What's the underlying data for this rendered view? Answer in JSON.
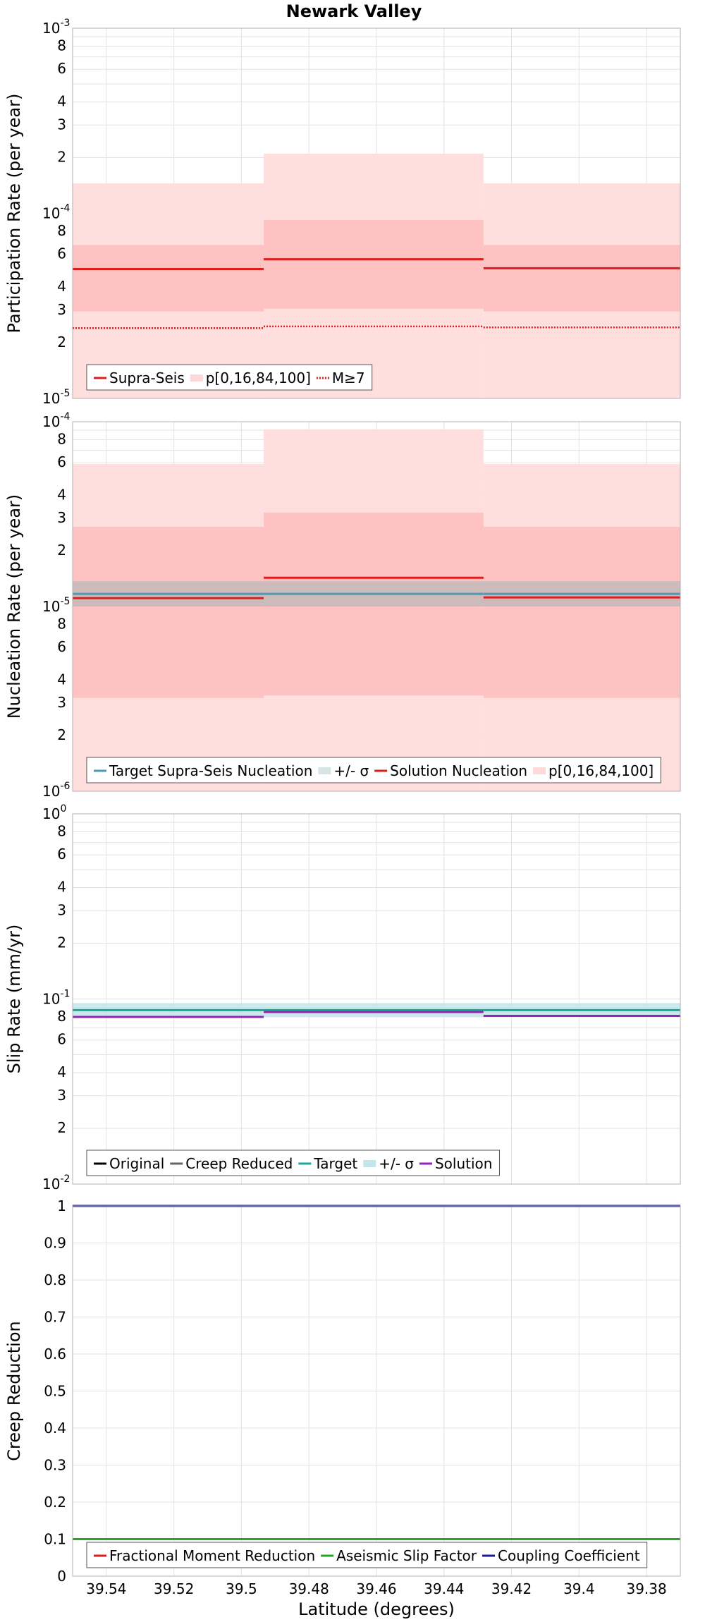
{
  "title": "Newark Valley",
  "x_axis": {
    "label": "Latitude (degrees)",
    "min": 39.55,
    "max": 39.37,
    "ticks": [
      39.54,
      39.52,
      39.5,
      39.48,
      39.46,
      39.44,
      39.42,
      39.4,
      39.38
    ],
    "tick_labels": [
      "39.54",
      "39.52",
      "39.5",
      "39.48",
      "39.46",
      "39.44",
      "39.42",
      "39.4",
      "39.38"
    ]
  },
  "chart_data": [
    {
      "type": "line",
      "name": "participation",
      "ylabel": "Participation Rate (per year)",
      "yscale": "log",
      "ylim": [
        1e-05,
        0.001
      ],
      "y_major_labels": [
        {
          "base": "10",
          "exp": "-5"
        },
        {
          "base": "10",
          "exp": "-4"
        },
        {
          "base": "10",
          "exp": "-3"
        }
      ],
      "y_minor_labels": [
        "2",
        "3",
        "4",
        "6",
        "8"
      ],
      "bin_edges": [
        39.55,
        39.4934,
        39.4283,
        39.37
      ],
      "bands": [
        {
          "color": "#ffdede",
          "low": [
            1e-05,
            1e-05,
            1e-05
          ],
          "high": [
            0.000145,
            0.00021,
            0.000145
          ]
        },
        {
          "color": "#ffc2c2",
          "low": [
            2.95e-05,
            3.05e-05,
            2.95e-05
          ],
          "high": [
            6.75e-05,
            9.2e-05,
            6.75e-05
          ]
        }
      ],
      "series": [
        {
          "name": "Supra-Seis",
          "color": "#dd1c1c",
          "style": "solid",
          "values": [
            5e-05,
            5.65e-05,
            5.05e-05
          ]
        },
        {
          "name": "M≥7",
          "color": "#dd1c1c",
          "style": "dotted",
          "values": [
            2.4e-05,
            2.45e-05,
            2.42e-05
          ]
        }
      ],
      "legend": [
        {
          "label": "Supra-Seis",
          "kind": "line",
          "color": "#dd1c1c",
          "style": "solid"
        },
        {
          "label": "p[0,16,84,100]",
          "kind": "patch",
          "color": "#ffd9d9"
        },
        {
          "label": "M≥7",
          "kind": "line",
          "color": "#dd1c1c",
          "style": "dotted"
        }
      ]
    },
    {
      "type": "line",
      "name": "nucleation",
      "ylabel": "Nucleation Rate (per year)",
      "yscale": "log",
      "ylim": [
        1e-06,
        0.0001
      ],
      "y_major_labels": [
        {
          "base": "10",
          "exp": "-6"
        },
        {
          "base": "10",
          "exp": "-5"
        },
        {
          "base": "10",
          "exp": "-4"
        }
      ],
      "y_minor_labels": [
        "2",
        "3",
        "4",
        "6",
        "8"
      ],
      "bin_edges": [
        39.55,
        39.4934,
        39.4283,
        39.37
      ],
      "bands": [
        {
          "color": "#ffdede",
          "low": [
            1e-06,
            1e-06,
            1e-06
          ],
          "high": [
            5.9e-05,
            9.1e-05,
            5.9e-05
          ]
        },
        {
          "color": "#ffc2c2",
          "low": [
            3.2e-06,
            3.3e-06,
            3.2e-06
          ],
          "high": [
            2.7e-05,
            3.22e-05,
            2.7e-05
          ]
        }
      ],
      "target_band": {
        "color": "#c4b8b8",
        "low": 1e-05,
        "high": 1.37e-05
      },
      "series": [
        {
          "name": "Target Supra-Seis Nucleation",
          "color": "#4a9ab6",
          "style": "solid",
          "values": [
            1.17e-05,
            1.17e-05,
            1.17e-05
          ]
        },
        {
          "name": "Solution Nucleation",
          "color": "#dd1c1c",
          "style": "solid",
          "values": [
            1.11e-05,
            1.43e-05,
            1.12e-05
          ]
        }
      ],
      "legend": [
        {
          "label": "Target Supra-Seis Nucleation",
          "kind": "line",
          "color": "#4a9ab6",
          "style": "solid"
        },
        {
          "label": "+/- σ",
          "kind": "patch",
          "color": "#d6e4e4"
        },
        {
          "label": "Solution Nucleation",
          "kind": "line",
          "color": "#dd1c1c",
          "style": "solid"
        },
        {
          "label": "p[0,16,84,100]",
          "kind": "patch",
          "color": "#ffd9d9"
        }
      ]
    },
    {
      "type": "line",
      "name": "slip",
      "ylabel": "Slip Rate (mm/yr)",
      "yscale": "log",
      "ylim": [
        0.01,
        1
      ],
      "y_major_labels": [
        {
          "base": "10",
          "exp": "-2"
        },
        {
          "base": "10",
          "exp": "-1"
        },
        {
          "base": "10",
          "exp": "0"
        }
      ],
      "y_minor_labels": [
        "2",
        "3",
        "4",
        "6",
        "8"
      ],
      "bin_edges": [
        39.55,
        39.4934,
        39.4283,
        39.37
      ],
      "target_band": {
        "color": "#c2e6ea",
        "low": [
          0.08,
          0.08,
          0.08
        ],
        "high": [
          0.095,
          0.095,
          0.095
        ]
      },
      "series": [
        {
          "name": "Target",
          "color": "#17a89a",
          "style": "solid",
          "values": [
            0.087,
            0.087,
            0.087
          ]
        },
        {
          "name": "Solution",
          "color": "#9424b4",
          "style": "solid",
          "values": [
            0.08,
            0.085,
            0.081
          ]
        }
      ],
      "legend": [
        {
          "label": "Original",
          "kind": "line",
          "color": "#000000",
          "style": "solid"
        },
        {
          "label": "Creep Reduced",
          "kind": "line",
          "color": "#666666",
          "style": "solid"
        },
        {
          "label": "Target",
          "kind": "line",
          "color": "#17a89a",
          "style": "solid"
        },
        {
          "label": "+/- σ",
          "kind": "patch",
          "color": "#c2e6ea"
        },
        {
          "label": "Solution",
          "kind": "line",
          "color": "#9424b4",
          "style": "solid"
        }
      ]
    },
    {
      "type": "line",
      "name": "creep",
      "ylabel": "Creep Reduction",
      "yscale": "linear",
      "ylim": [
        0,
        1
      ],
      "y_ticks": [
        0,
        0.1,
        0.2,
        0.3,
        0.4,
        0.5,
        0.6,
        0.7,
        0.8,
        0.9,
        1
      ],
      "y_tick_labels": [
        "0",
        "0.1",
        "0.2",
        "0.3",
        "0.4",
        "0.5",
        "0.6",
        "0.7",
        "0.8",
        "0.9",
        "1"
      ],
      "series": [
        {
          "name": "Aseismic Slip Factor",
          "color": "#22aa22",
          "style": "solid",
          "value": 0.1
        },
        {
          "name": "Coupling Coefficient",
          "color": "#1c1c9a",
          "style": "solid",
          "value": 1.0
        }
      ],
      "legend": [
        {
          "label": "Fractional Moment Reduction",
          "kind": "line",
          "color": "#dd1c1c",
          "style": "solid"
        },
        {
          "label": "Aseismic Slip Factor",
          "kind": "line",
          "color": "#22aa22",
          "style": "solid"
        },
        {
          "label": "Coupling Coefficient",
          "kind": "line",
          "color": "#1c1c9a",
          "style": "solid"
        }
      ]
    }
  ]
}
